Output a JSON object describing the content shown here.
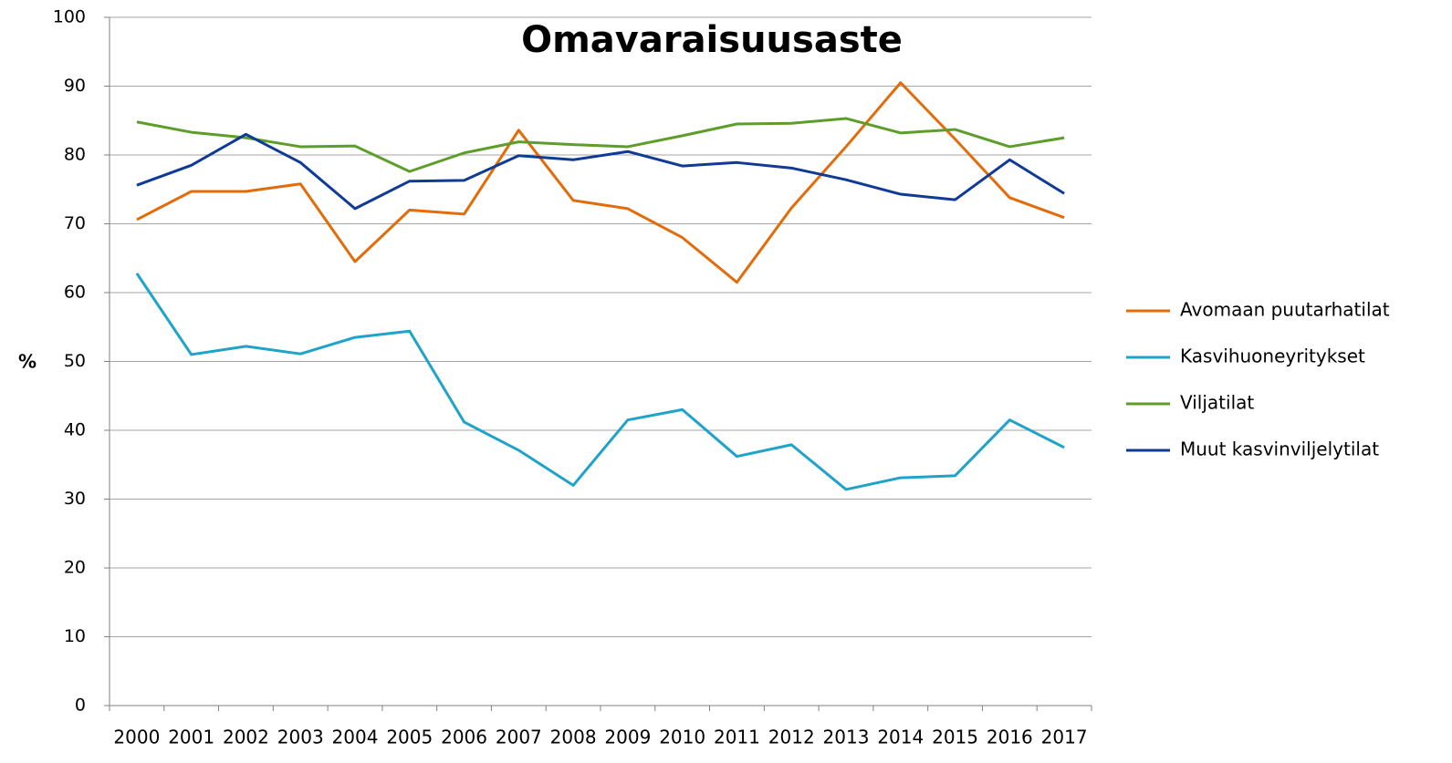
{
  "chart_data": {
    "type": "line",
    "title": "Omavaraisuusaste",
    "y_label": "%",
    "categories": [
      "2000",
      "2001",
      "2002",
      "2003",
      "2004",
      "2005",
      "2006",
      "2007",
      "2008",
      "2009",
      "2010",
      "2011",
      "2012",
      "2013",
      "2014",
      "2015",
      "2016",
      "2017"
    ],
    "series": [
      {
        "name": "Avomaan puutarhatilat",
        "color": "#e36c0a",
        "values": [
          70.6,
          74.7,
          74.7,
          75.8,
          64.5,
          72,
          71.4,
          83.6,
          73.4,
          72.2,
          68,
          61.5,
          72.3,
          81.2,
          90.5,
          82.3,
          73.8,
          70.9
        ]
      },
      {
        "name": "Kasvihuoneyritykset",
        "color": "#1fa3c9",
        "values": [
          62.8,
          51,
          52.2,
          51.1,
          53.5,
          54.4,
          41.2,
          37.1,
          32,
          41.5,
          43,
          36.2,
          37.9,
          31.4,
          33.1,
          33.4,
          41.5,
          37.5
        ]
      },
      {
        "name": "Viljatilat",
        "color": "#5d9e2a",
        "values": [
          84.8,
          83.3,
          82.5,
          81.2,
          81.3,
          77.6,
          80.3,
          81.9,
          81.5,
          81.2,
          82.8,
          84.5,
          84.6,
          85.3,
          83.2,
          83.7,
          81.2,
          82.5
        ]
      },
      {
        "name": "Muut kasvinviljelytilat",
        "color": "#0f3a96",
        "values": [
          75.6,
          78.5,
          83,
          78.9,
          72.2,
          76.2,
          76.3,
          79.9,
          79.3,
          80.5,
          78.4,
          78.9,
          78.1,
          76.4,
          74.3,
          73.5,
          79.3,
          74.4
        ]
      }
    ],
    "ylim": [
      0,
      100
    ],
    "yticks": [
      0,
      10,
      20,
      30,
      40,
      50,
      60,
      70,
      80,
      90,
      100
    ],
    "grid": true,
    "legend": "right"
  }
}
